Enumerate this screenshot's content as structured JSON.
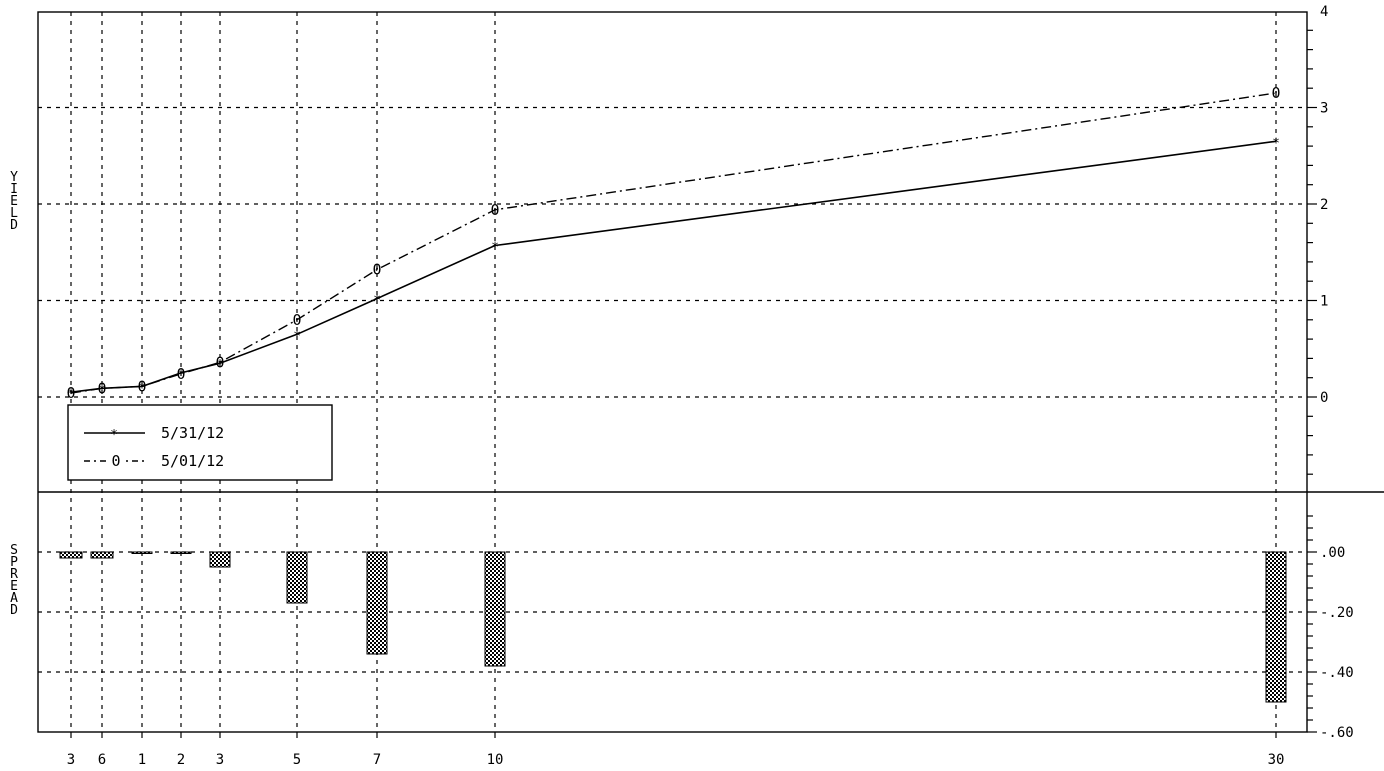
{
  "chart_data": [
    {
      "type": "line",
      "ylabel": "YIELD",
      "ylim": [
        -1,
        4
      ],
      "y_ticks": [
        "4",
        "3",
        "2",
        "1",
        "0"
      ],
      "x_tick_labels": [
        "3",
        "6",
        "1",
        "2",
        "3",
        "5",
        "7",
        "10",
        "30"
      ],
      "series": [
        {
          "name": "5/31/12",
          "marker": "*",
          "style": "solid",
          "values": [
            0.05,
            0.09,
            0.11,
            0.25,
            0.35,
            0.65,
            1.02,
            1.57,
            2.65
          ]
        },
        {
          "name": "5/01/12",
          "marker": "0",
          "style": "dash-dot",
          "values": [
            0.04,
            0.09,
            0.11,
            0.24,
            0.36,
            0.8,
            1.32,
            1.94,
            3.15
          ]
        }
      ],
      "legend": "lower-left",
      "grid": true
    },
    {
      "type": "bar",
      "ylabel": "SPREAD",
      "ylim": [
        -0.6,
        0
      ],
      "y_ticks": [
        ".00",
        "-.20",
        "-.40",
        "-.60"
      ],
      "categories": [
        "3",
        "6",
        "1",
        "2",
        "3",
        "5",
        "7",
        "10",
        "30"
      ],
      "values": [
        -0.02,
        -0.02,
        -0.005,
        -0.005,
        -0.05,
        -0.17,
        -0.34,
        -0.38,
        -0.5
      ],
      "grid": true
    }
  ]
}
